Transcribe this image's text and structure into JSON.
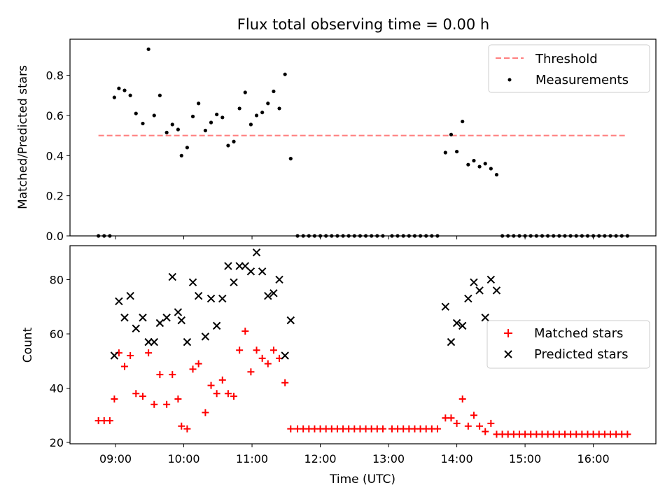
{
  "figure": {
    "title": "Flux total observing time = 0.00 h"
  },
  "chart_data": [
    {
      "type": "scatter",
      "ylabel": "Matched/Predicted stars",
      "xlabel": "",
      "xlim": [
        "08:20",
        "16:55"
      ],
      "ylim": [
        0,
        0.98
      ],
      "yticks": [
        0.0,
        0.2,
        0.4,
        0.6,
        0.8
      ],
      "yticklabels": [
        "0.0",
        "0.2",
        "0.4",
        "0.6",
        "0.8"
      ],
      "xticks": [
        "09:00",
        "10:00",
        "11:00",
        "12:00",
        "13:00",
        "14:00",
        "15:00",
        "16:00"
      ],
      "legend": {
        "placement": "top-right",
        "entries": [
          "Threshold",
          "Measurements"
        ]
      },
      "series": [
        {
          "name": "Threshold",
          "kind": "dashed-line",
          "color": "#ff7f7f",
          "x": [
            "08:45",
            "16:30"
          ],
          "y": [
            0.5,
            0.5
          ]
        },
        {
          "name": "Measurements",
          "kind": "dot",
          "color": "#000000",
          "points": [
            [
              "08:45",
              0
            ],
            [
              "08:50",
              0
            ],
            [
              "08:55",
              0
            ],
            [
              "08:59",
              0.69
            ],
            [
              "09:03",
              0.735
            ],
            [
              "09:08",
              0.725
            ],
            [
              "09:13",
              0.7
            ],
            [
              "09:18",
              0.61
            ],
            [
              "09:24",
              0.56
            ],
            [
              "09:29",
              0.93
            ],
            [
              "09:34",
              0.6
            ],
            [
              "09:39",
              0.7
            ],
            [
              "09:45",
              0.515
            ],
            [
              "09:50",
              0.555
            ],
            [
              "09:55",
              0.53
            ],
            [
              "09:58",
              0.4
            ],
            [
              "10:03",
              0.44
            ],
            [
              "10:08",
              0.595
            ],
            [
              "10:13",
              0.66
            ],
            [
              "10:19",
              0.525
            ],
            [
              "10:24",
              0.565
            ],
            [
              "10:29",
              0.605
            ],
            [
              "10:34",
              0.59
            ],
            [
              "10:39",
              0.45
            ],
            [
              "10:44",
              0.47
            ],
            [
              "10:49",
              0.635
            ],
            [
              "10:54",
              0.715
            ],
            [
              "10:59",
              0.555
            ],
            [
              "11:04",
              0.6
            ],
            [
              "11:09",
              0.615
            ],
            [
              "11:14",
              0.66
            ],
            [
              "11:19",
              0.72
            ],
            [
              "11:24",
              0.635
            ],
            [
              "11:29",
              0.805
            ],
            [
              "11:34",
              0.385
            ],
            [
              "11:40",
              0
            ],
            [
              "11:45",
              0
            ],
            [
              "11:50",
              0
            ],
            [
              "11:55",
              0
            ],
            [
              "12:00",
              0
            ],
            [
              "12:05",
              0
            ],
            [
              "12:10",
              0
            ],
            [
              "12:15",
              0
            ],
            [
              "12:20",
              0
            ],
            [
              "12:25",
              0
            ],
            [
              "12:30",
              0
            ],
            [
              "12:35",
              0
            ],
            [
              "12:40",
              0
            ],
            [
              "12:45",
              0
            ],
            [
              "12:50",
              0
            ],
            [
              "12:55",
              0
            ],
            [
              "13:03",
              0
            ],
            [
              "13:08",
              0
            ],
            [
              "13:13",
              0
            ],
            [
              "13:18",
              0
            ],
            [
              "13:23",
              0
            ],
            [
              "13:28",
              0
            ],
            [
              "13:33",
              0
            ],
            [
              "13:38",
              0
            ],
            [
              "13:43",
              0
            ],
            [
              "13:50",
              0.415
            ],
            [
              "13:55",
              0.505
            ],
            [
              "14:00",
              0.42
            ],
            [
              "14:05",
              0.57
            ],
            [
              "14:10",
              0.355
            ],
            [
              "14:15",
              0.375
            ],
            [
              "14:20",
              0.345
            ],
            [
              "14:25",
              0.36
            ],
            [
              "14:30",
              0.335
            ],
            [
              "14:35",
              0.305
            ],
            [
              "14:40",
              0
            ],
            [
              "14:45",
              0
            ],
            [
              "14:50",
              0
            ],
            [
              "14:55",
              0
            ],
            [
              "15:00",
              0
            ],
            [
              "15:05",
              0
            ],
            [
              "15:10",
              0
            ],
            [
              "15:15",
              0
            ],
            [
              "15:20",
              0
            ],
            [
              "15:25",
              0
            ],
            [
              "15:30",
              0
            ],
            [
              "15:35",
              0
            ],
            [
              "15:40",
              0
            ],
            [
              "15:45",
              0
            ],
            [
              "15:50",
              0
            ],
            [
              "15:55",
              0
            ],
            [
              "16:00",
              0
            ],
            [
              "16:05",
              0
            ],
            [
              "16:10",
              0
            ],
            [
              "16:15",
              0
            ],
            [
              "16:20",
              0
            ],
            [
              "16:25",
              0
            ],
            [
              "16:30",
              0
            ]
          ]
        }
      ]
    },
    {
      "type": "scatter",
      "ylabel": "Count",
      "xlabel": "Time (UTC)",
      "xlim": [
        "08:20",
        "16:55"
      ],
      "ylim": [
        19.5,
        92.5
      ],
      "yticks": [
        20,
        40,
        60,
        80
      ],
      "yticklabels": [
        "20",
        "40",
        "60",
        "80"
      ],
      "xticks": [
        "09:00",
        "10:00",
        "11:00",
        "12:00",
        "13:00",
        "14:00",
        "15:00",
        "16:00"
      ],
      "xticklabels": [
        "09:00",
        "10:00",
        "11:00",
        "12:00",
        "13:00",
        "14:00",
        "15:00",
        "16:00"
      ],
      "legend": {
        "placement": "center-right",
        "entries": [
          "Matched stars",
          "Predicted stars"
        ]
      },
      "series": [
        {
          "name": "Matched stars",
          "kind": "plus",
          "color": "#ff0000",
          "points": [
            [
              "08:45",
              28
            ],
            [
              "08:50",
              28
            ],
            [
              "08:55",
              28
            ],
            [
              "08:59",
              36
            ],
            [
              "09:03",
              53
            ],
            [
              "09:08",
              48
            ],
            [
              "09:13",
              52
            ],
            [
              "09:18",
              38
            ],
            [
              "09:24",
              37
            ],
            [
              "09:29",
              53
            ],
            [
              "09:34",
              34
            ],
            [
              "09:39",
              45
            ],
            [
              "09:45",
              34
            ],
            [
              "09:50",
              45
            ],
            [
              "09:55",
              36
            ],
            [
              "09:58",
              26
            ],
            [
              "10:03",
              25
            ],
            [
              "10:08",
              47
            ],
            [
              "10:13",
              49
            ],
            [
              "10:19",
              31
            ],
            [
              "10:24",
              41
            ],
            [
              "10:29",
              38
            ],
            [
              "10:34",
              43
            ],
            [
              "10:39",
              38
            ],
            [
              "10:44",
              37
            ],
            [
              "10:49",
              54
            ],
            [
              "10:54",
              61
            ],
            [
              "10:59",
              46
            ],
            [
              "11:04",
              54
            ],
            [
              "11:09",
              51
            ],
            [
              "11:14",
              49
            ],
            [
              "11:19",
              54
            ],
            [
              "11:24",
              51
            ],
            [
              "11:29",
              42
            ],
            [
              "11:34",
              25
            ],
            [
              "11:40",
              25
            ],
            [
              "11:45",
              25
            ],
            [
              "11:50",
              25
            ],
            [
              "11:55",
              25
            ],
            [
              "12:00",
              25
            ],
            [
              "12:05",
              25
            ],
            [
              "12:10",
              25
            ],
            [
              "12:15",
              25
            ],
            [
              "12:20",
              25
            ],
            [
              "12:25",
              25
            ],
            [
              "12:30",
              25
            ],
            [
              "12:35",
              25
            ],
            [
              "12:40",
              25
            ],
            [
              "12:45",
              25
            ],
            [
              "12:50",
              25
            ],
            [
              "12:55",
              25
            ],
            [
              "13:03",
              25
            ],
            [
              "13:08",
              25
            ],
            [
              "13:13",
              25
            ],
            [
              "13:18",
              25
            ],
            [
              "13:23",
              25
            ],
            [
              "13:28",
              25
            ],
            [
              "13:33",
              25
            ],
            [
              "13:38",
              25
            ],
            [
              "13:43",
              25
            ],
            [
              "13:50",
              29
            ],
            [
              "13:55",
              29
            ],
            [
              "14:00",
              27
            ],
            [
              "14:05",
              36
            ],
            [
              "14:10",
              26
            ],
            [
              "14:15",
              30
            ],
            [
              "14:20",
              26
            ],
            [
              "14:25",
              24
            ],
            [
              "14:30",
              27
            ],
            [
              "14:35",
              23
            ],
            [
              "14:40",
              23
            ],
            [
              "14:45",
              23
            ],
            [
              "14:50",
              23
            ],
            [
              "14:55",
              23
            ],
            [
              "15:00",
              23
            ],
            [
              "15:05",
              23
            ],
            [
              "15:10",
              23
            ],
            [
              "15:15",
              23
            ],
            [
              "15:20",
              23
            ],
            [
              "15:25",
              23
            ],
            [
              "15:30",
              23
            ],
            [
              "15:35",
              23
            ],
            [
              "15:40",
              23
            ],
            [
              "15:45",
              23
            ],
            [
              "15:50",
              23
            ],
            [
              "15:55",
              23
            ],
            [
              "16:00",
              23
            ],
            [
              "16:05",
              23
            ],
            [
              "16:10",
              23
            ],
            [
              "16:15",
              23
            ],
            [
              "16:20",
              23
            ],
            [
              "16:25",
              23
            ],
            [
              "16:30",
              23
            ]
          ]
        },
        {
          "name": "Predicted stars",
          "kind": "x",
          "color": "#000000",
          "points": [
            [
              "08:59",
              52
            ],
            [
              "09:03",
              72
            ],
            [
              "09:08",
              66
            ],
            [
              "09:13",
              74
            ],
            [
              "09:18",
              62
            ],
            [
              "09:24",
              66
            ],
            [
              "09:29",
              57
            ],
            [
              "09:34",
              57
            ],
            [
              "09:39",
              64
            ],
            [
              "09:45",
              66
            ],
            [
              "09:50",
              81
            ],
            [
              "09:55",
              68
            ],
            [
              "09:58",
              65
            ],
            [
              "10:03",
              57
            ],
            [
              "10:08",
              79
            ],
            [
              "10:13",
              74
            ],
            [
              "10:19",
              59
            ],
            [
              "10:24",
              73
            ],
            [
              "10:29",
              63
            ],
            [
              "10:34",
              73
            ],
            [
              "10:39",
              85
            ],
            [
              "10:44",
              79
            ],
            [
              "10:49",
              85
            ],
            [
              "10:54",
              85
            ],
            [
              "10:59",
              83
            ],
            [
              "11:04",
              90
            ],
            [
              "11:09",
              83
            ],
            [
              "11:14",
              74
            ],
            [
              "11:19",
              75
            ],
            [
              "11:24",
              80
            ],
            [
              "11:29",
              52
            ],
            [
              "11:34",
              65
            ],
            [
              "13:50",
              70
            ],
            [
              "13:55",
              57
            ],
            [
              "14:00",
              64
            ],
            [
              "14:05",
              63
            ],
            [
              "14:10",
              73
            ],
            [
              "14:15",
              79
            ],
            [
              "14:20",
              76
            ],
            [
              "14:25",
              66
            ],
            [
              "14:30",
              80
            ],
            [
              "14:35",
              76
            ]
          ]
        }
      ]
    }
  ]
}
